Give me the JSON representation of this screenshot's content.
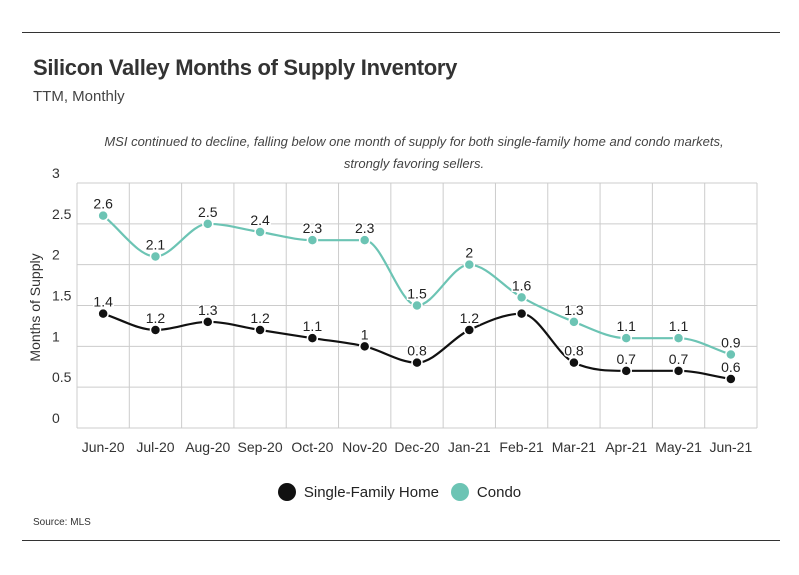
{
  "header": {
    "title": "Silicon Valley Months of Supply Inventory",
    "subtitle": "TTM, Monthly",
    "note": "MSI continued to decline, falling below one month of supply for both single-family home and condo markets, strongly favoring sellers."
  },
  "footer": {
    "source": "Source:  MLS"
  },
  "colors": {
    "single_family": "#111111",
    "condo": "#6cc4b4",
    "grid": "#cccccc"
  },
  "chart_data": {
    "type": "line",
    "title": "Silicon Valley Months of Supply Inventory",
    "subtitle": "TTM, Monthly",
    "ylabel": "Months of Supply",
    "xlabel": "",
    "ylim": [
      0,
      3
    ],
    "yticks": [
      "0",
      "0.5",
      "1",
      "1.5",
      "2",
      "2.5",
      "3"
    ],
    "categories": [
      "Jun-20",
      "Jul-20",
      "Aug-20",
      "Sep-20",
      "Oct-20",
      "Nov-20",
      "Dec-20",
      "Jan-21",
      "Feb-21",
      "Mar-21",
      "Apr-21",
      "May-21",
      "Jun-21"
    ],
    "grid": true,
    "legend_position": "bottom",
    "series": [
      {
        "name": "Single-Family Home",
        "values": [
          1.4,
          1.2,
          1.3,
          1.2,
          1.1,
          1.0,
          0.8,
          1.2,
          1.4,
          0.8,
          0.7,
          0.7,
          0.6
        ],
        "labels": [
          "1.4",
          "1.2",
          "1.3",
          "1.2",
          "1.1",
          "1",
          "0.8",
          "1.2",
          "",
          "0.8",
          "0.7",
          "0.7",
          "0.6"
        ]
      },
      {
        "name": "Condo",
        "values": [
          2.6,
          2.1,
          2.5,
          2.4,
          2.3,
          2.3,
          1.5,
          2.0,
          1.6,
          1.3,
          1.1,
          1.1,
          0.9
        ],
        "labels": [
          "2.6",
          "2.1",
          "2.5",
          "2.4",
          "2.3",
          "2.3",
          "1.5",
          "2",
          "1.6",
          "1.3",
          "1.1",
          "1.1",
          "0.9"
        ]
      }
    ]
  }
}
